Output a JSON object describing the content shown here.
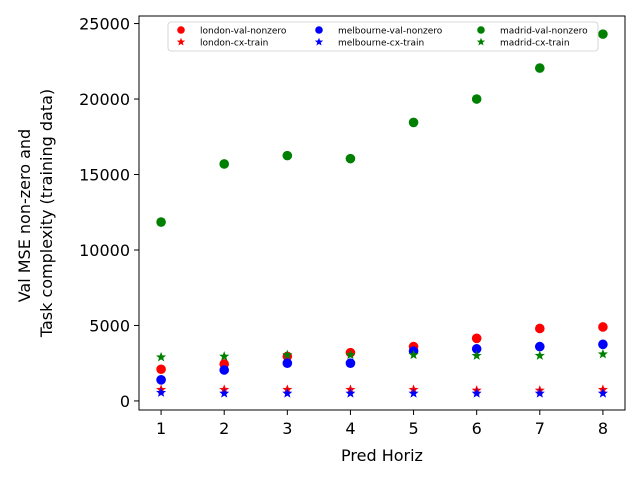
{
  "chart_data": {
    "type": "scatter",
    "xlabel": "Pred Horiz",
    "ylabel_lines": [
      "Val MSE non-zero and",
      "Task complexity (training data)"
    ],
    "xlim": [
      0.65,
      8.35
    ],
    "ylim": [
      -600,
      25500
    ],
    "x_ticks": [
      1,
      2,
      3,
      4,
      5,
      6,
      7,
      8
    ],
    "y_ticks": [
      0,
      5000,
      10000,
      15000,
      20000,
      25000
    ],
    "legend_position": "top",
    "legend_columns": 3,
    "x": [
      1,
      2,
      3,
      4,
      5,
      6,
      7,
      8
    ],
    "series": [
      {
        "name": "london-val-nonzero",
        "marker": "circle",
        "color": "#ff0000",
        "values": [
          2100,
          2450,
          2950,
          3200,
          3600,
          4150,
          4800,
          4900
        ]
      },
      {
        "name": "london-cx-train",
        "marker": "star",
        "color": "#ff0000",
        "values": [
          750,
          750,
          750,
          750,
          750,
          700,
          700,
          750
        ]
      },
      {
        "name": "melbourne-val-nonzero",
        "marker": "circle",
        "color": "#0000ff",
        "values": [
          1400,
          2050,
          2500,
          2500,
          3300,
          3450,
          3600,
          3750
        ]
      },
      {
        "name": "melbourne-cx-train",
        "marker": "star",
        "color": "#0000ff",
        "values": [
          550,
          500,
          500,
          500,
          500,
          500,
          500,
          500
        ]
      },
      {
        "name": "madrid-val-nonzero",
        "marker": "circle",
        "color": "#008000",
        "values": [
          11850,
          15700,
          16250,
          16050,
          18450,
          20000,
          22050,
          24300
        ]
      },
      {
        "name": "madrid-cx-train",
        "marker": "star",
        "color": "#008000",
        "values": [
          2900,
          2950,
          3050,
          3050,
          3050,
          3000,
          3000,
          3100
        ]
      }
    ]
  }
}
